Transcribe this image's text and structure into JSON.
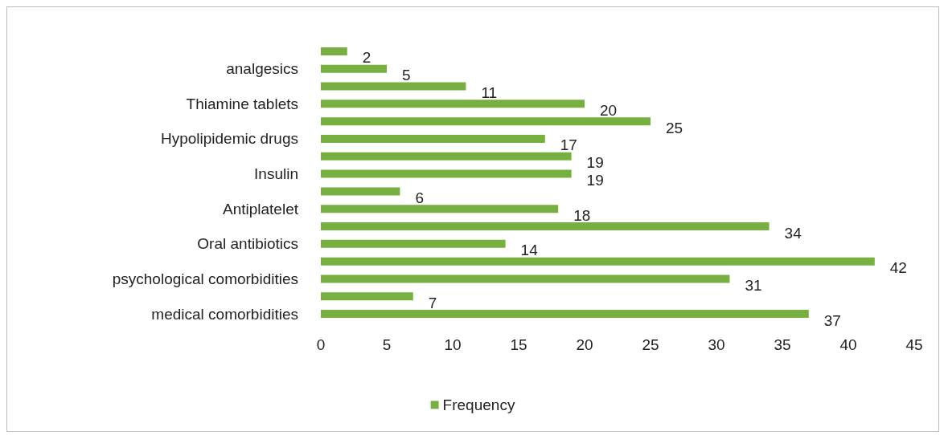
{
  "chart_data": {
    "type": "bar",
    "orientation": "horizontal",
    "categories": [
      null,
      "analgesics",
      null,
      "Thiamine tablets",
      null,
      "Hypolipidemic drugs",
      null,
      "Insulin",
      null,
      "Antiplatelet",
      null,
      "Oral antibiotics",
      null,
      "psychological comorbidities",
      null,
      "medical comorbidities"
    ],
    "series": [
      {
        "name": "Frequency",
        "color": "#77b041",
        "values": [
          2,
          5,
          11,
          20,
          25,
          17,
          19,
          19,
          6,
          18,
          34,
          14,
          42,
          31,
          7,
          37
        ]
      }
    ],
    "xlim": [
      0,
      45
    ],
    "xticks": [
      0,
      5,
      10,
      15,
      20,
      25,
      30,
      35,
      40,
      45
    ],
    "data_labels": true,
    "legend": "bottom",
    "grid": false
  }
}
